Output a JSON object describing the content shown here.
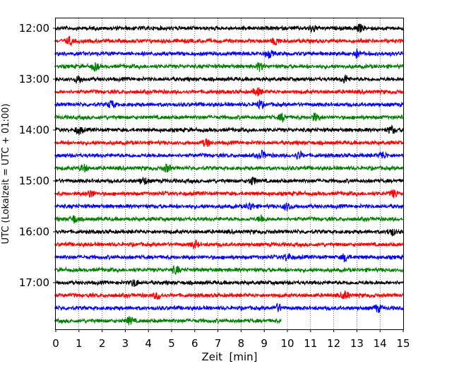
{
  "chart_data": {
    "type": "line",
    "title": "",
    "xlabel": "Zeit  [min]",
    "ylabel": "UTC (Lokalzeit = UTC + 01:00)",
    "xlim": [
      0,
      15
    ],
    "x_ticks": [
      "0",
      "1",
      "2",
      "3",
      "4",
      "5",
      "6",
      "7",
      "8",
      "9",
      "10",
      "11",
      "12",
      "13",
      "14",
      "15"
    ],
    "y_ticks": [
      "12:00",
      "13:00",
      "14:00",
      "15:00",
      "16:00",
      "17:00"
    ],
    "y_tick_hours": [
      12,
      13,
      14,
      15,
      16,
      17
    ],
    "grid": "x-only dotted",
    "color_cycle": [
      "#000000",
      "#ff0000",
      "#0000ff",
      "#008000"
    ],
    "traces": [
      {
        "start": "12:00",
        "end_min": 15,
        "color": "#000000",
        "events": [
          11.1,
          13.1
        ]
      },
      {
        "start": "12:15",
        "end_min": 15,
        "color": "#ff0000",
        "events": [
          0.6,
          9.5
        ]
      },
      {
        "start": "12:30",
        "end_min": 15,
        "color": "#0000ff",
        "events": [
          9.2,
          13.0
        ]
      },
      {
        "start": "12:45",
        "end_min": 15,
        "color": "#008000",
        "events": [
          1.7,
          8.8
        ]
      },
      {
        "start": "13:00",
        "end_min": 15,
        "color": "#000000",
        "events": [
          1.0,
          12.5
        ]
      },
      {
        "start": "13:15",
        "end_min": 15,
        "color": "#ff0000",
        "events": [
          8.7
        ]
      },
      {
        "start": "13:30",
        "end_min": 15,
        "color": "#0000ff",
        "events": [
          8.8,
          2.4
        ]
      },
      {
        "start": "13:45",
        "end_min": 15,
        "color": "#008000",
        "events": [
          11.2,
          9.8
        ]
      },
      {
        "start": "14:00",
        "end_min": 15,
        "color": "#000000",
        "events": [
          1.0,
          14.5
        ]
      },
      {
        "start": "14:15",
        "end_min": 15,
        "color": "#ff0000",
        "events": [
          6.5
        ]
      },
      {
        "start": "14:30",
        "end_min": 15,
        "color": "#0000ff",
        "events": [
          8.9,
          10.5,
          14.1
        ]
      },
      {
        "start": "14:45",
        "end_min": 15,
        "color": "#008000",
        "events": [
          4.8,
          1.2
        ]
      },
      {
        "start": "15:00",
        "end_min": 15,
        "color": "#000000",
        "events": [
          3.8,
          8.5
        ]
      },
      {
        "start": "15:15",
        "end_min": 15,
        "color": "#ff0000",
        "events": [
          14.6,
          1.5
        ]
      },
      {
        "start": "15:30",
        "end_min": 15,
        "color": "#0000ff",
        "events": [
          10.0,
          8.4
        ]
      },
      {
        "start": "15:45",
        "end_min": 15,
        "color": "#008000",
        "events": [
          0.8,
          8.9
        ]
      },
      {
        "start": "16:00",
        "end_min": 15,
        "color": "#000000",
        "events": [
          14.5
        ]
      },
      {
        "start": "16:15",
        "end_min": 15,
        "color": "#ff0000",
        "events": [
          6.0
        ]
      },
      {
        "start": "16:30",
        "end_min": 15,
        "color": "#0000ff",
        "events": [
          10.0,
          12.5
        ]
      },
      {
        "start": "16:45",
        "end_min": 15,
        "color": "#008000",
        "events": [
          5.2
        ]
      },
      {
        "start": "17:00",
        "end_min": 15,
        "color": "#000000",
        "events": [
          3.4
        ]
      },
      {
        "start": "17:15",
        "end_min": 15,
        "color": "#ff0000",
        "events": [
          4.4,
          12.5
        ]
      },
      {
        "start": "17:30",
        "end_min": 15,
        "color": "#0000ff",
        "events": [
          9.6,
          13.9
        ]
      },
      {
        "start": "17:45",
        "end_min": 9.75,
        "color": "#008000",
        "events": [
          3.2
        ]
      }
    ]
  }
}
